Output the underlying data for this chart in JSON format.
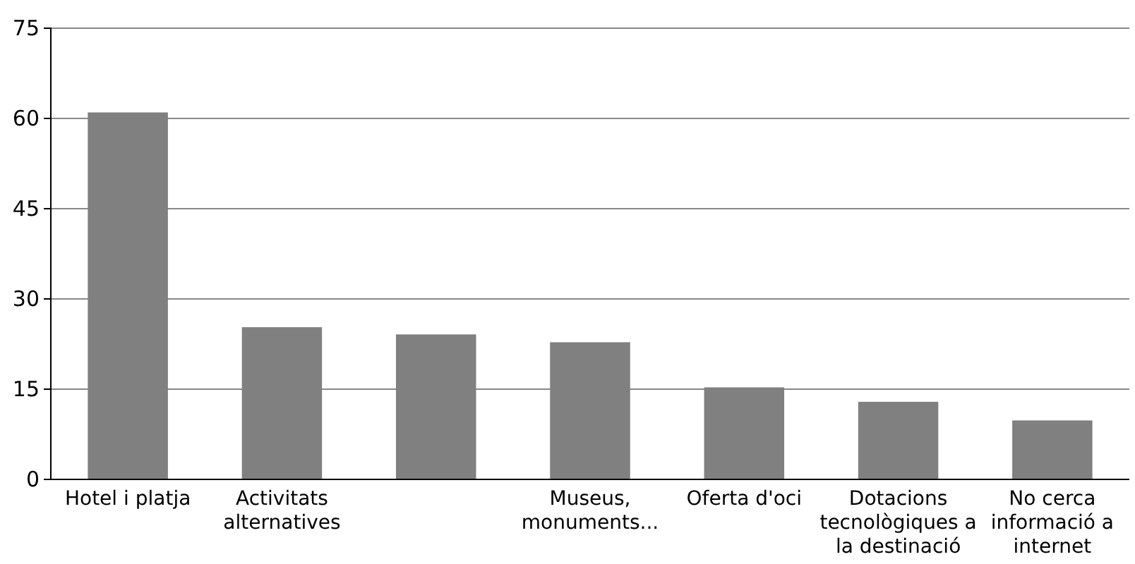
{
  "chart_data": {
    "type": "bar",
    "categories": [
      "Hotel i platja",
      "Activitats alternatives",
      null,
      "Museus, monuments...",
      "Oferta d'oci",
      "Dotacions tecnològiques a la destinació",
      "No cerca informació a internet"
    ],
    "values": [
      61,
      25.3,
      24.1,
      22.8,
      15.3,
      12.9,
      9.8
    ],
    "color": "#808080",
    "ylim": [
      0,
      75
    ],
    "yticks": [
      0,
      15,
      30,
      45,
      60,
      75
    ],
    "grid": "y"
  }
}
